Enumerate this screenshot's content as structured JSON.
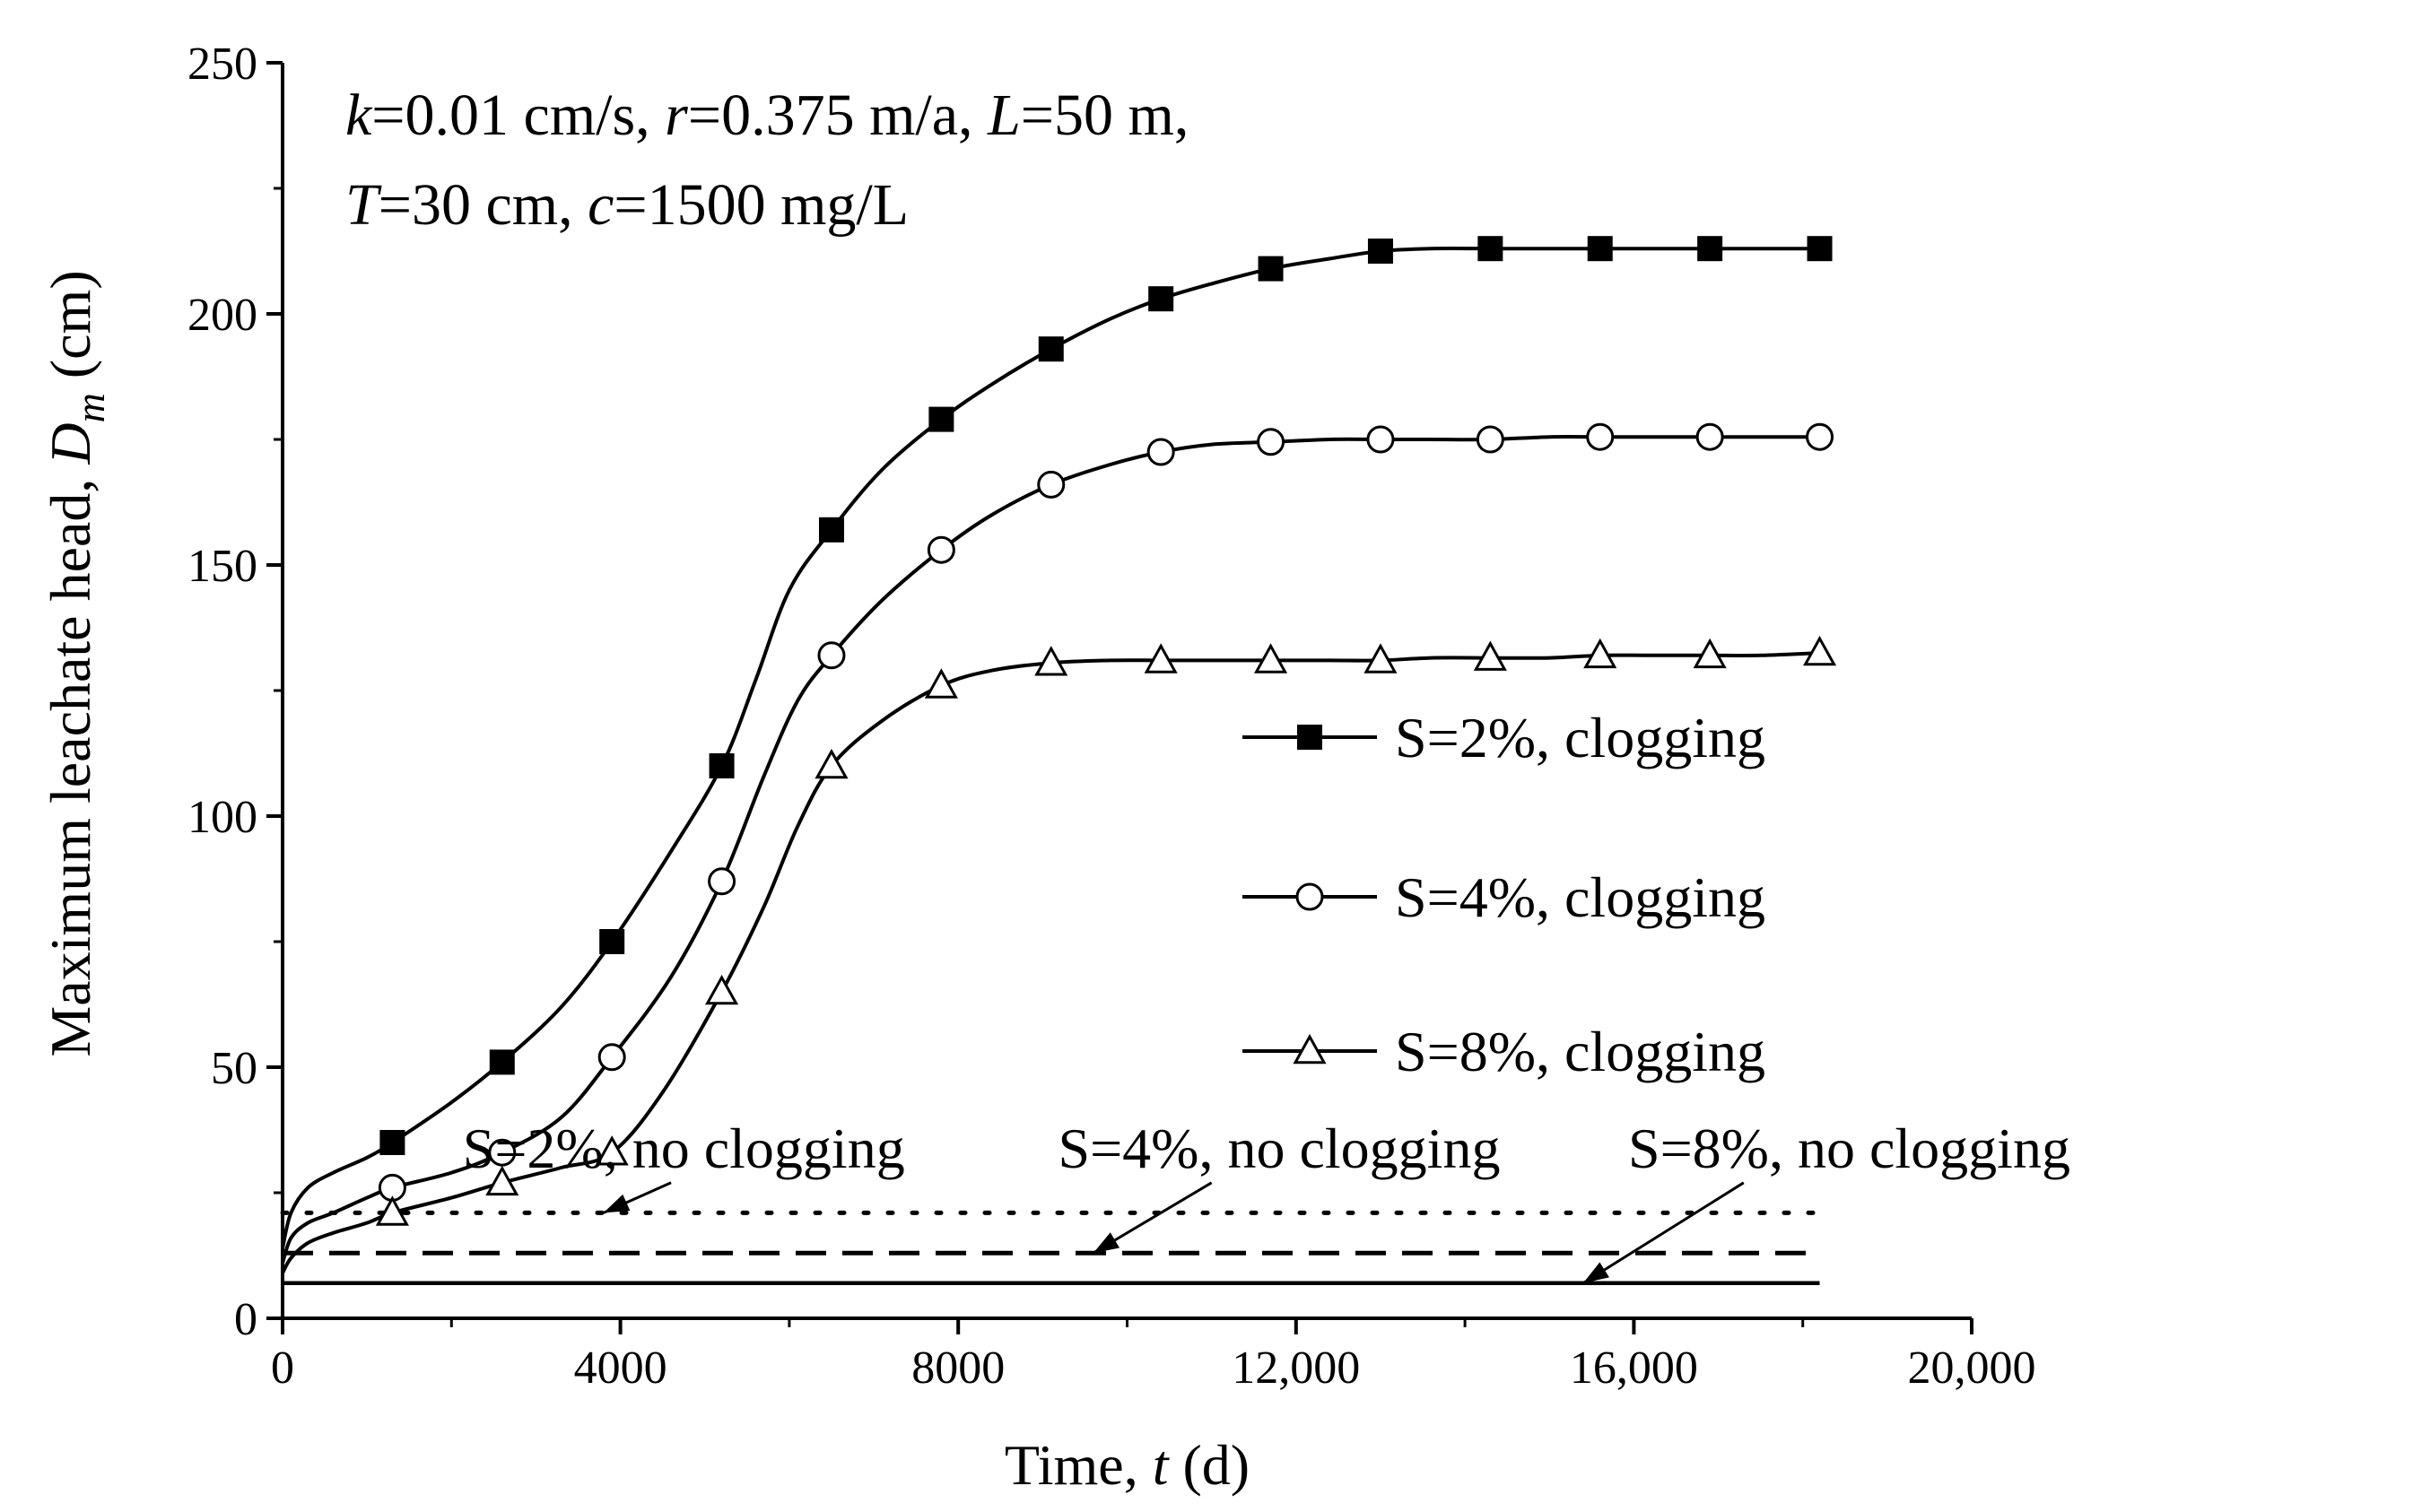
{
  "chart_data": {
    "type": "line",
    "title": "",
    "annotation": {
      "line1": [
        {
          "text": "k",
          "italic": true
        },
        {
          "text": "=0.01 cm/s, ",
          "italic": false
        },
        {
          "text": "r",
          "italic": true
        },
        {
          "text": "=0.375 m/a, ",
          "italic": false
        },
        {
          "text": "L",
          "italic": true
        },
        {
          "text": "=50 m,",
          "italic": false
        }
      ],
      "line2": [
        {
          "text": "T",
          "italic": true
        },
        {
          "text": "=30 cm, ",
          "italic": false
        },
        {
          "text": "c",
          "italic": true
        },
        {
          "text": "=1500 mg/L",
          "italic": false
        }
      ]
    },
    "xlabel": {
      "prefix": "Time, ",
      "var": "t",
      "suffix": " (d)"
    },
    "ylabel": {
      "prefix": "Maximum leachate head, ",
      "var": "D",
      "sub": "m",
      "suffix": " (cm)"
    },
    "xlim": [
      0,
      20000
    ],
    "ylim": [
      0,
      250
    ],
    "xticks": [
      0,
      4000,
      8000,
      12000,
      16000,
      20000
    ],
    "xtick_labels": [
      "0",
      "4000",
      "8000",
      "12,000",
      "16,000",
      "20,000"
    ],
    "yticks": [
      0,
      50,
      100,
      150,
      200,
      250
    ],
    "ytick_labels": [
      "0",
      "50",
      "100",
      "150",
      "200",
      "250"
    ],
    "grid": false,
    "legend_position": "middle-right",
    "series": [
      {
        "name": "S=2%, clogging",
        "marker": "square-filled",
        "line": "solid",
        "x": [
          0,
          100,
          300,
          600,
          1000,
          1300,
          2000,
          2600,
          3300,
          3900,
          4600,
          5200,
          5600,
          6000,
          6500,
          7100,
          7800,
          8400,
          9100,
          9800,
          10400,
          11000,
          11700,
          12400,
          13000,
          13600,
          14300,
          15000,
          15600,
          16200,
          16900,
          17500,
          18200
        ],
        "y": [
          14,
          21,
          26,
          29,
          32,
          35,
          43,
          51,
          62,
          75,
          93,
          110,
          127,
          145,
          157,
          169,
          179,
          186,
          193,
          199,
          203,
          206,
          209,
          211,
          212.5,
          213,
          213,
          213,
          213,
          213,
          213,
          213,
          213
        ],
        "marker_x": [
          1300,
          2600,
          3900,
          5200,
          6500,
          7800,
          9100,
          10400,
          11700,
          13000,
          14300,
          15600,
          16900,
          18200
        ]
      },
      {
        "name": "S=4%, clogging",
        "marker": "circle-open",
        "line": "solid",
        "x": [
          0,
          100,
          300,
          600,
          1000,
          1300,
          2000,
          2600,
          3300,
          3900,
          4600,
          5200,
          5700,
          6100,
          6500,
          7100,
          7800,
          8400,
          9100,
          9800,
          10400,
          11000,
          11700,
          12400,
          13000,
          13600,
          14300,
          15000,
          15600,
          16200,
          16900,
          17500,
          18200
        ],
        "y": [
          11,
          16,
          19,
          21,
          24,
          26,
          29,
          33,
          40,
          52,
          68,
          87,
          108,
          123,
          132,
          143,
          153,
          160,
          166,
          170,
          172.5,
          174,
          174.5,
          175,
          175,
          175,
          175,
          175.5,
          175.5,
          175.5,
          175.5,
          175.5,
          175.5
        ],
        "marker_x": [
          1300,
          2600,
          3900,
          5200,
          6500,
          7800,
          9100,
          10400,
          11700,
          13000,
          14300,
          15600,
          16900,
          18200
        ]
      },
      {
        "name": "S=8%, clogging",
        "marker": "triangle-open",
        "line": "solid",
        "x": [
          0,
          100,
          300,
          600,
          1000,
          1300,
          2000,
          2600,
          3300,
          3900,
          4500,
          5200,
          5700,
          6100,
          6500,
          7100,
          7800,
          8400,
          9100,
          9800,
          10400,
          11000,
          11700,
          12400,
          13000,
          13600,
          14300,
          15000,
          15600,
          16200,
          16900,
          17500,
          18200
        ],
        "y": [
          9,
          12,
          15,
          17,
          19,
          21,
          24,
          27,
          30,
          33,
          45,
          65,
          82,
          98,
          110,
          119,
          126,
          129,
          130.5,
          131,
          131,
          131,
          131,
          131,
          131,
          131.5,
          131.5,
          131.5,
          132,
          132,
          132,
          132,
          132.5
        ],
        "marker_x": [
          1300,
          2600,
          3900,
          5200,
          6500,
          7800,
          9100,
          10400,
          11700,
          13000,
          14300,
          15600,
          16900,
          18200
        ]
      },
      {
        "name": "S=2%, no clogging",
        "marker": "none",
        "line": "dotted",
        "x": [
          0,
          18200
        ],
        "y": [
          21,
          21
        ]
      },
      {
        "name": "S=4%, no clogging",
        "marker": "none",
        "line": "dashed",
        "x": [
          0,
          18200
        ],
        "y": [
          13,
          13
        ]
      },
      {
        "name": "S=8%, no clogging",
        "marker": "none",
        "line": "solid",
        "x": [
          0,
          18200
        ],
        "y": [
          7,
          7
        ]
      }
    ],
    "line_labels": [
      {
        "text": "S=2%, no clogging",
        "text_x": 4750,
        "text_y": 30,
        "arrow_from": [
          4600,
          27
        ],
        "arrow_to": [
          3800,
          21
        ]
      },
      {
        "text": "S=4%, no clogging",
        "text_x": 11800,
        "text_y": 30,
        "arrow_from": [
          11000,
          27
        ],
        "arrow_to": [
          9600,
          13
        ]
      },
      {
        "text": "S=8%, no clogging",
        "text_x": 18550,
        "text_y": 30,
        "arrow_from": [
          17300,
          27
        ],
        "arrow_to": [
          15400,
          7
        ]
      }
    ]
  }
}
